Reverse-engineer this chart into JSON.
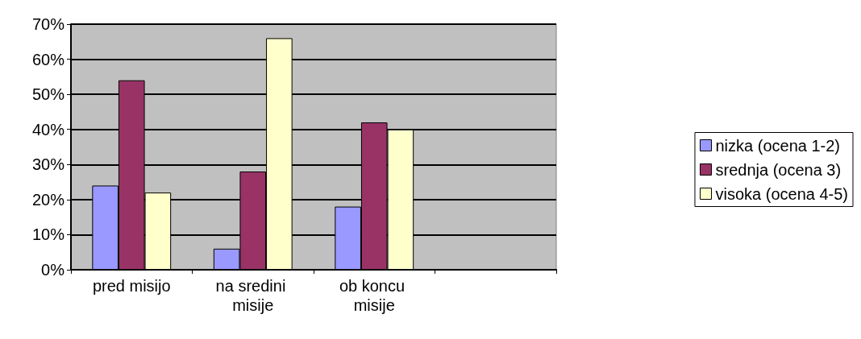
{
  "chart_data": {
    "type": "bar",
    "categories": [
      "pred misijo",
      "na sredini misije",
      "ob koncu misije",
      null
    ],
    "series": [
      {
        "name": "nizka (ocena 1-2)",
        "color": "#9999ff",
        "values": [
          24,
          6,
          18,
          null
        ]
      },
      {
        "name": "srednja (ocena 3)",
        "color": "#993366",
        "values": [
          54,
          28,
          42,
          null
        ]
      },
      {
        "name": "visoka (ocena 4-5)",
        "color": "#ffffcc",
        "values": [
          22,
          66,
          40,
          null
        ]
      }
    ],
    "ylim": [
      0,
      70
    ],
    "yticks": [
      {
        "value": 0,
        "label": "0%"
      },
      {
        "value": 10,
        "label": "10%"
      },
      {
        "value": 20,
        "label": "20%"
      },
      {
        "value": 30,
        "label": "30%"
      },
      {
        "value": 40,
        "label": "40%"
      },
      {
        "value": 50,
        "label": "50%"
      },
      {
        "value": 60,
        "label": "60%"
      },
      {
        "value": 70,
        "label": "70%"
      }
    ],
    "grid": "y",
    "legend": "right"
  }
}
